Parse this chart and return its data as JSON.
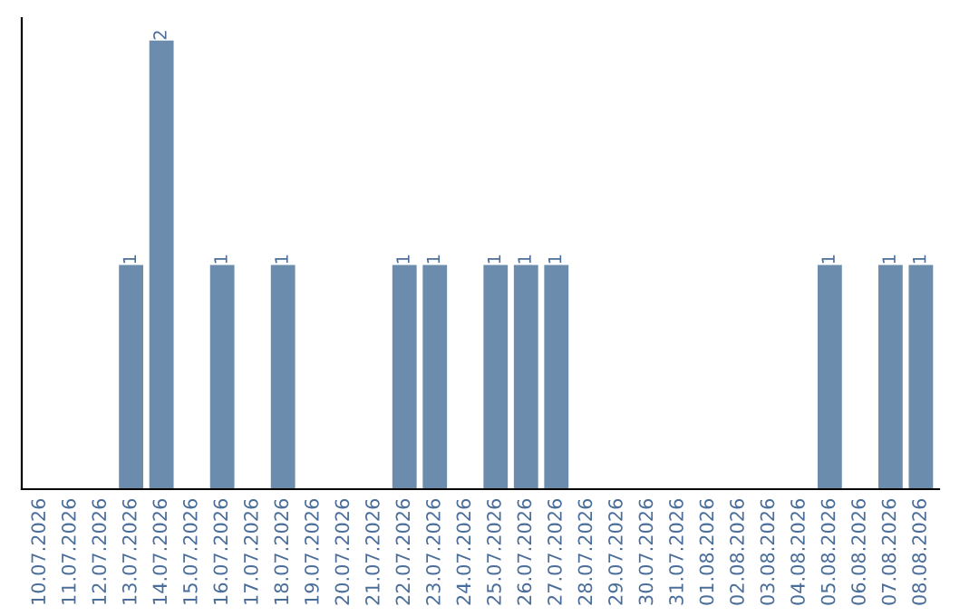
{
  "chart_data": {
    "type": "bar",
    "categories": [
      "10.07.2026",
      "11.07.2026",
      "12.07.2026",
      "13.07.2026",
      "14.07.2026",
      "15.07.2026",
      "16.07.2026",
      "17.07.2026",
      "18.07.2026",
      "19.07.2026",
      "20.07.2026",
      "21.07.2026",
      "22.07.2026",
      "23.07.2026",
      "24.07.2026",
      "25.07.2026",
      "26.07.2026",
      "27.07.2026",
      "28.07.2026",
      "29.07.2026",
      "30.07.2026",
      "31.07.2026",
      "01.08.2026",
      "02.08.2026",
      "03.08.2026",
      "04.08.2026",
      "05.08.2026",
      "06.08.2026",
      "07.08.2026",
      "08.08.2026"
    ],
    "values": [
      0,
      0,
      0,
      1,
      2,
      0,
      1,
      0,
      1,
      0,
      0,
      0,
      1,
      1,
      0,
      1,
      1,
      1,
      0,
      0,
      0,
      0,
      0,
      0,
      0,
      0,
      1,
      0,
      1,
      1
    ],
    "value_labels": [
      null,
      null,
      null,
      "1",
      "2",
      null,
      "1",
      null,
      "1",
      null,
      null,
      null,
      "1",
      "1",
      null,
      "1",
      "1",
      "1",
      null,
      null,
      null,
      null,
      null,
      null,
      null,
      null,
      "1",
      null,
      "1",
      "1"
    ],
    "color": "#6b8cac",
    "tick_labels": "x",
    "grid": false,
    "legend": false
  }
}
